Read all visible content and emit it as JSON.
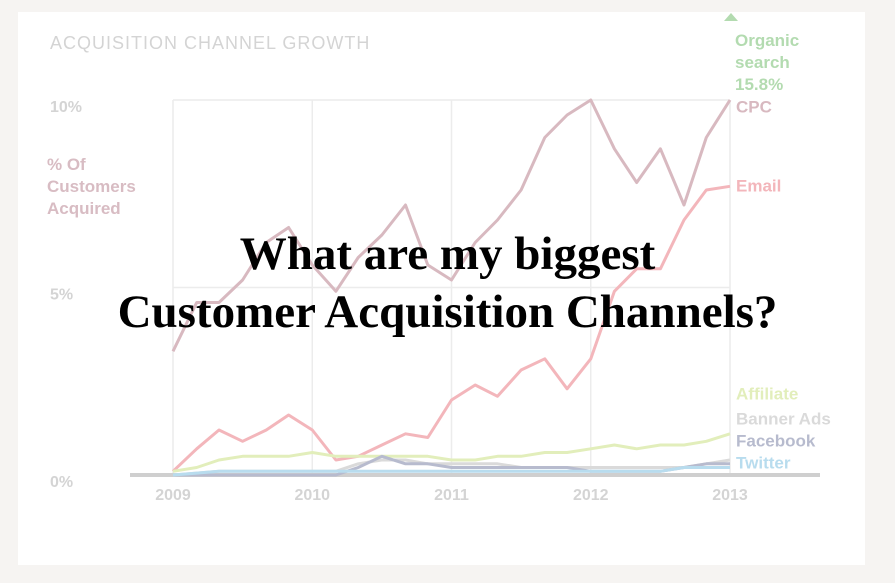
{
  "chart_data": {
    "type": "line",
    "title": "ACQUISITION CHANNEL GROWTH",
    "y_label": "% Of Customers Acquired",
    "overlay_lines": [
      "What are my biggest",
      "Customer Acquisition Channels?"
    ],
    "x": [
      2009,
      2009.17,
      2009.33,
      2009.5,
      2009.67,
      2009.83,
      2010,
      2010.17,
      2010.33,
      2010.5,
      2010.67,
      2010.83,
      2011,
      2011.17,
      2011.33,
      2011.5,
      2011.67,
      2011.83,
      2012,
      2012.17,
      2012.33,
      2012.5,
      2012.67,
      2012.83,
      2013
    ],
    "xlim": [
      2009,
      2013
    ],
    "xticks": [
      2009,
      2010,
      2011,
      2012,
      2013
    ],
    "ylim": [
      0,
      10
    ],
    "yticks": [
      {
        "value": 0,
        "label": "0%"
      },
      {
        "value": 5,
        "label": "5%"
      },
      {
        "value": 10,
        "label": "10%"
      }
    ],
    "grid": true,
    "offscale": {
      "name": "Organic search",
      "value": 15.8,
      "value_label": "15.8%",
      "color": "#b3dbb0"
    },
    "series": [
      {
        "name": "CPC",
        "color": "#d8b9c0",
        "values": [
          3.3,
          4.6,
          4.6,
          5.2,
          6.2,
          6.6,
          5.6,
          4.9,
          5.8,
          6.4,
          7.2,
          5.6,
          5.2,
          6.2,
          6.8,
          7.6,
          9,
          9.6,
          10,
          8.7,
          7.8,
          8.7,
          7.2,
          9,
          10
        ]
      },
      {
        "name": "Email",
        "color": "#f3b6bb",
        "values": [
          0.1,
          0.7,
          1.2,
          0.9,
          1.2,
          1.6,
          1.2,
          0.4,
          0.5,
          0.8,
          1.1,
          1.0,
          2.0,
          2.4,
          2.1,
          2.8,
          3.1,
          2.3,
          3.1,
          4.9,
          5.5,
          5.5,
          6.8,
          7.6,
          7.7
        ]
      },
      {
        "name": "Affiliate",
        "color": "#e2eebb",
        "values": [
          0.1,
          0.2,
          0.4,
          0.5,
          0.5,
          0.5,
          0.6,
          0.5,
          0.5,
          0.5,
          0.5,
          0.5,
          0.4,
          0.4,
          0.5,
          0.5,
          0.6,
          0.6,
          0.7,
          0.8,
          0.7,
          0.8,
          0.8,
          0.9,
          1.1
        ]
      },
      {
        "name": "Banner Ads",
        "color": "#dadada",
        "values": [
          0,
          0.05,
          0.1,
          0.1,
          0.1,
          0.1,
          0.1,
          0.1,
          0.3,
          0.4,
          0.4,
          0.3,
          0.3,
          0.3,
          0.3,
          0.2,
          0.2,
          0.2,
          0.2,
          0.2,
          0.2,
          0.2,
          0.2,
          0.3,
          0.4
        ]
      },
      {
        "name": "Facebook",
        "color": "#b7bbce",
        "values": [
          0,
          0,
          0,
          0,
          0,
          0,
          0,
          0,
          0.2,
          0.5,
          0.3,
          0.3,
          0.2,
          0.2,
          0.2,
          0.2,
          0.2,
          0.2,
          0.1,
          0.1,
          0.1,
          0.1,
          0.2,
          0.3,
          0.3
        ]
      },
      {
        "name": "Twitter",
        "color": "#b8dcee",
        "values": [
          0,
          0.05,
          0.1,
          0.1,
          0.1,
          0.1,
          0.1,
          0.1,
          0.1,
          0.1,
          0.1,
          0.1,
          0.1,
          0.1,
          0.1,
          0.1,
          0.1,
          0.1,
          0.1,
          0.1,
          0.1,
          0.1,
          0.2,
          0.2,
          0.2
        ]
      }
    ]
  }
}
